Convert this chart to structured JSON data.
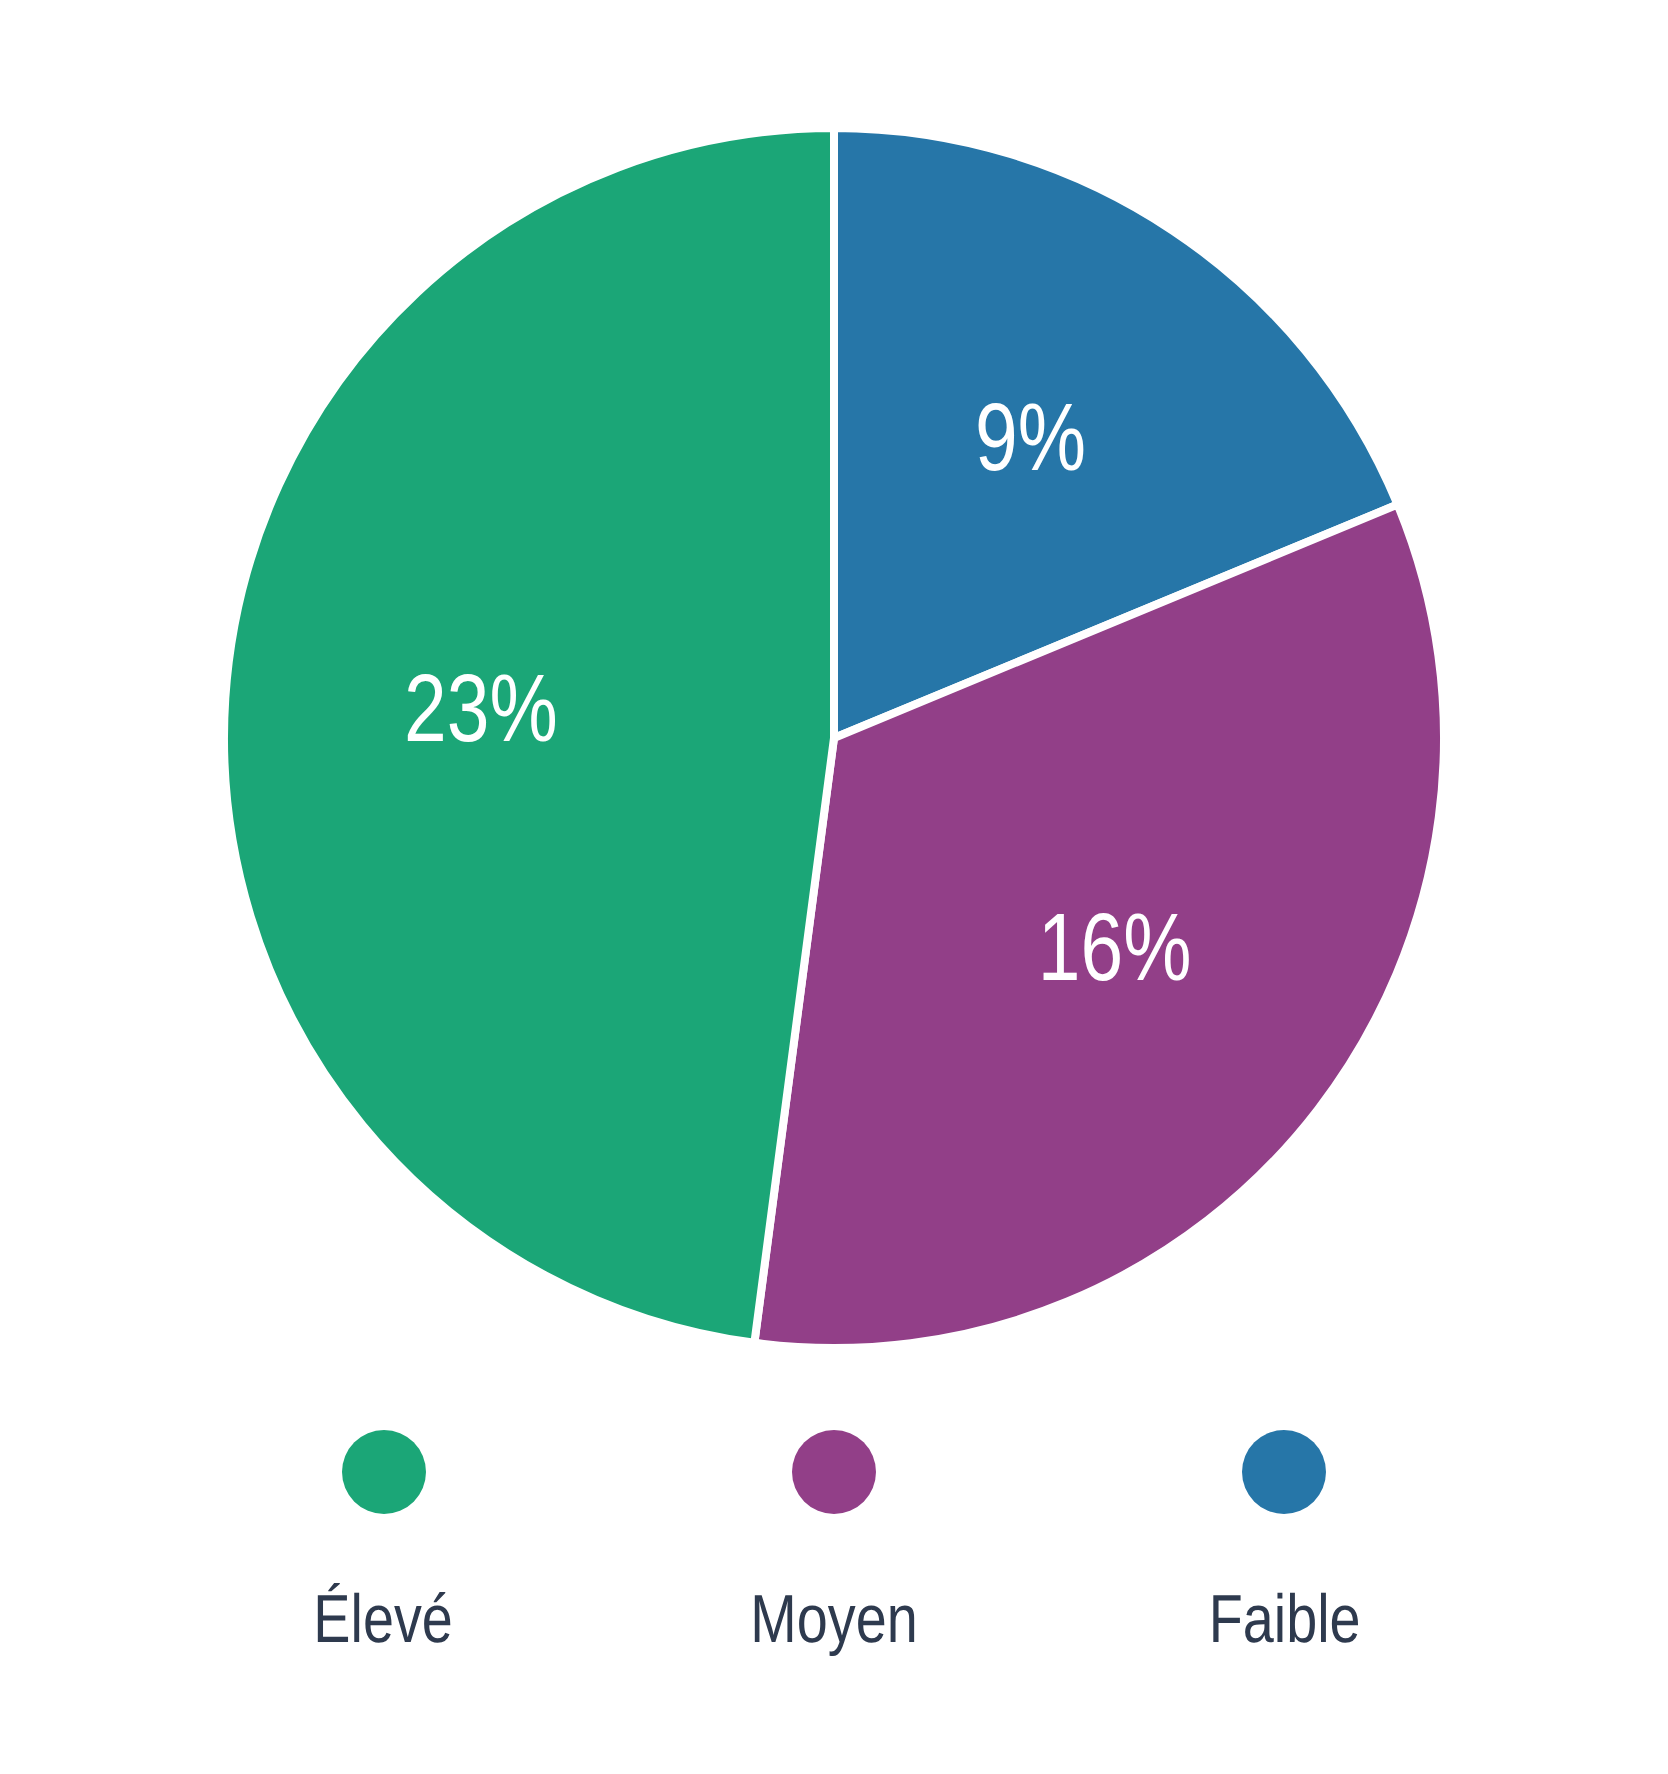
{
  "chart_data": {
    "type": "pie",
    "categories": [
      "Faible",
      "Moyen",
      "Élevé"
    ],
    "values": [
      9,
      16,
      23
    ],
    "value_labels": [
      "9%",
      "16%",
      "23%"
    ],
    "colors": [
      "#2676a8",
      "#923f88",
      "#1ba677"
    ],
    "legend": "bottom"
  }
}
